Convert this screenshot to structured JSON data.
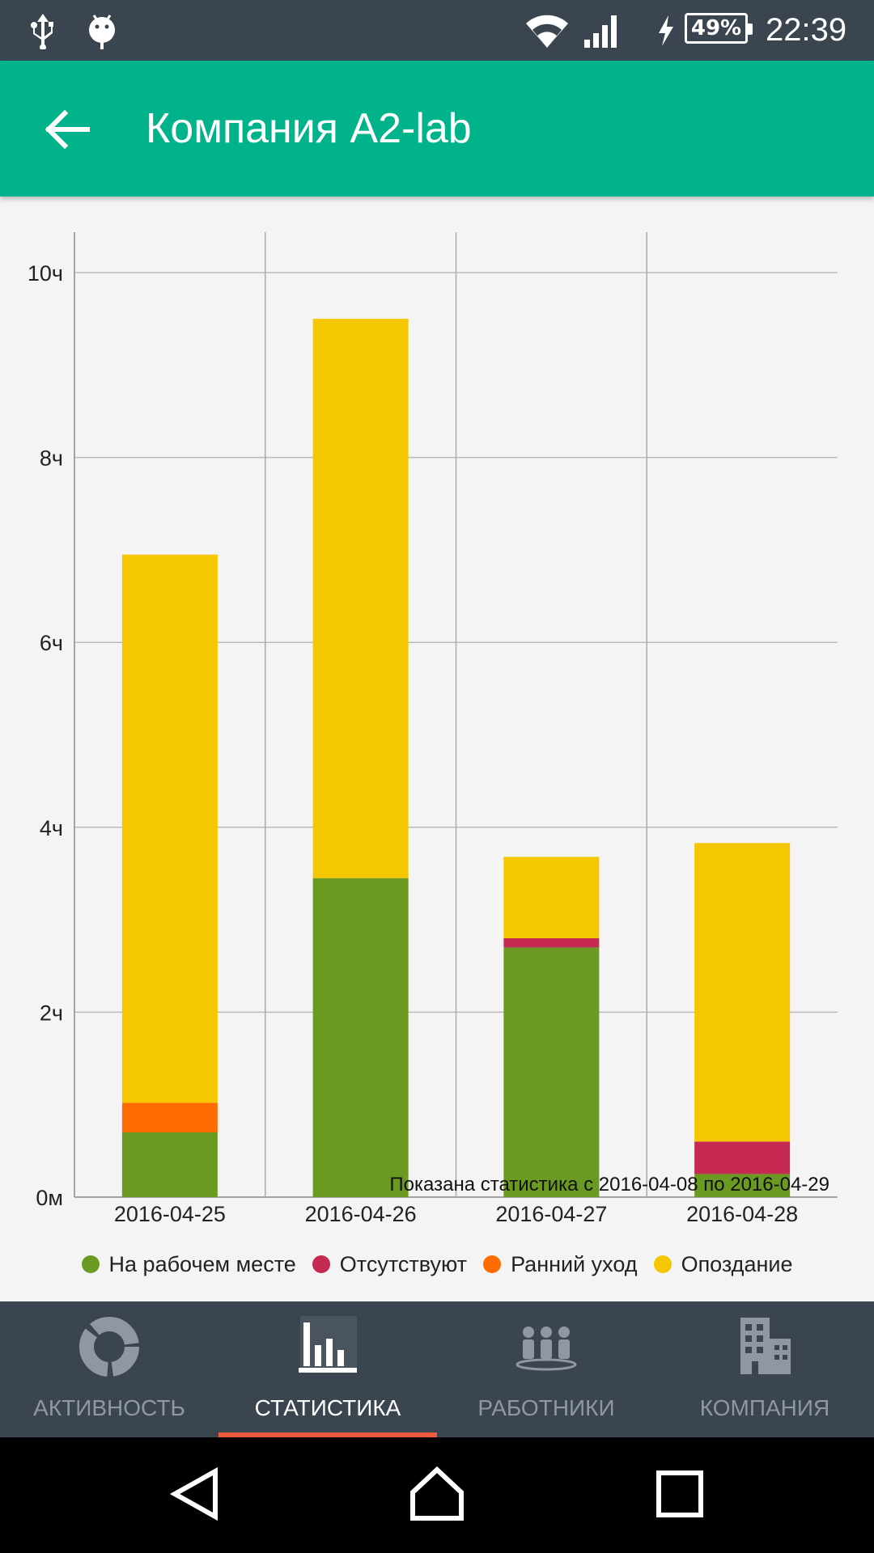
{
  "status_bar": {
    "time": "22:39",
    "battery_percent": "49%",
    "icons": [
      "usb-icon",
      "android-debug-icon",
      "wifi-icon",
      "signal-icon",
      "charging-icon",
      "battery-icon"
    ]
  },
  "app_bar": {
    "title": "Компания A2-lab",
    "back_icon": "arrow-back-icon"
  },
  "chart_data": {
    "type": "bar",
    "stacked": true,
    "categories": [
      "2016-04-25",
      "2016-04-26",
      "2016-04-27",
      "2016-04-28"
    ],
    "series": [
      {
        "name": "На рабочем месте",
        "color": "#6b9a22",
        "values": [
          0.7,
          3.45,
          2.7,
          0.25
        ]
      },
      {
        "name": "Отсутствуют",
        "color": "#c62a52",
        "values": [
          0,
          0,
          0.1,
          0.35
        ]
      },
      {
        "name": "Ранний уход",
        "color": "#ff6d00",
        "values": [
          0.32,
          0,
          0,
          0
        ]
      },
      {
        "name": "Опоздание",
        "color": "#f4c700",
        "values": [
          5.93,
          6.05,
          0.88,
          3.23
        ]
      }
    ],
    "y_ticks": [
      {
        "value": 0,
        "label": "0м"
      },
      {
        "value": 2,
        "label": "2ч"
      },
      {
        "value": 4,
        "label": "4ч"
      },
      {
        "value": 6,
        "label": "6ч"
      },
      {
        "value": 8,
        "label": "8ч"
      },
      {
        "value": 10,
        "label": "10ч"
      }
    ],
    "ylim": [
      0,
      10
    ],
    "grid": true,
    "legend_position": "bottom",
    "annotation": "Показана статистика с 2016-04-08 по 2016-04-29"
  },
  "bottom_nav": {
    "tabs": [
      {
        "label": "АКТИВНОСТЬ",
        "icon": "activity-donut-icon",
        "active": false
      },
      {
        "label": "СТАТИСТИКА",
        "icon": "bar-chart-icon",
        "active": true
      },
      {
        "label": "РАБОТНИКИ",
        "icon": "people-icon",
        "active": false
      },
      {
        "label": "КОМПАНИЯ",
        "icon": "building-icon",
        "active": false
      }
    ]
  },
  "system_nav": {
    "icons": [
      "back-triangle-icon",
      "home-icon",
      "recents-icon"
    ]
  },
  "colors": {
    "accent": "#00b38a",
    "bars_bg": "#3b4550",
    "active_indicator": "#ef5a3c"
  }
}
